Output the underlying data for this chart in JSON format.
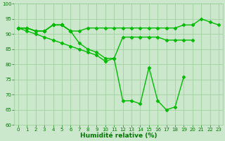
{
  "series": [
    {
      "x": [
        0,
        1,
        2,
        3,
        4,
        5,
        6,
        7,
        8,
        9,
        10,
        11,
        12,
        13,
        14,
        15,
        16,
        17,
        18,
        19,
        20,
        21,
        22,
        23
      ],
      "y": [
        92,
        92,
        91,
        91,
        93,
        93,
        91,
        91,
        92,
        92,
        92,
        92,
        92,
        92,
        92,
        92,
        92,
        92,
        92,
        93,
        93,
        95,
        94,
        93
      ]
    },
    {
      "x": [
        0,
        1,
        2,
        3,
        4,
        5,
        6,
        7,
        8,
        9,
        10,
        11,
        12,
        13,
        14,
        15,
        16,
        17,
        18,
        19,
        20
      ],
      "y": [
        92,
        92,
        91,
        91,
        93,
        93,
        91,
        87,
        85,
        84,
        82,
        82,
        89,
        89,
        89,
        89,
        89,
        88,
        88,
        88,
        88
      ]
    },
    {
      "x": [
        0,
        1,
        2,
        3,
        4,
        5,
        6,
        7,
        8,
        9,
        10,
        11,
        12,
        13,
        14,
        15,
        16,
        17,
        18,
        19
      ],
      "y": [
        92,
        91,
        90,
        89,
        88,
        87,
        86,
        85,
        84,
        83,
        81,
        82,
        68,
        68,
        67,
        79,
        68,
        65,
        66,
        76
      ]
    },
    {
      "x": [
        0,
        1,
        2,
        3,
        4,
        5,
        6
      ],
      "y": [
        92,
        92,
        91,
        91,
        93,
        93,
        91
      ]
    }
  ],
  "color": "#00bb00",
  "marker": "D",
  "markersize": 2.5,
  "linewidth": 1.0,
  "xlabel": "Humidité relative (%)",
  "xlim": [
    -0.5,
    23.5
  ],
  "ylim": [
    60,
    100
  ],
  "yticks": [
    60,
    65,
    70,
    75,
    80,
    85,
    90,
    95,
    100
  ],
  "xticks": [
    0,
    1,
    2,
    3,
    4,
    5,
    6,
    7,
    8,
    9,
    10,
    11,
    12,
    13,
    14,
    15,
    16,
    17,
    18,
    19,
    20,
    21,
    22,
    23
  ],
  "grid_color": "#99cc99",
  "bg_color": "#cce8cc",
  "tick_color": "#007700",
  "xlabel_fontsize": 6.5,
  "tick_fontsize": 5.0
}
